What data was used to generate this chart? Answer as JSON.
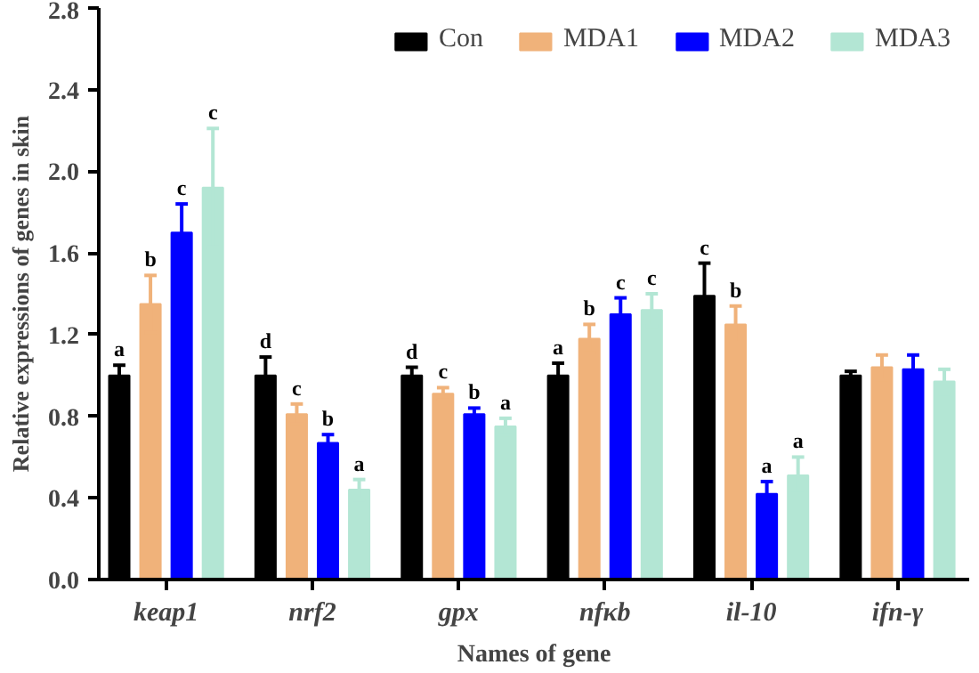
{
  "chart_data": {
    "type": "bar",
    "xlabel": "Names of gene",
    "ylabel": "Relative expressions of genes in skin",
    "categories": [
      "keap1",
      "nrf2",
      "gpx",
      "nfκb",
      "il-10",
      "ifn-γ"
    ],
    "series": [
      {
        "name": "Con",
        "color": "#000000",
        "values": [
          1.0,
          1.0,
          1.0,
          1.0,
          1.39,
          1.0
        ],
        "errors": [
          0.05,
          0.09,
          0.04,
          0.06,
          0.16,
          0.02
        ],
        "value_labels": [
          "a",
          "d",
          "d",
          "a",
          "c",
          null
        ]
      },
      {
        "name": "MDA1",
        "color": "#f0b27a",
        "values": [
          1.35,
          0.81,
          0.91,
          1.18,
          1.25,
          1.04
        ],
        "errors": [
          0.14,
          0.05,
          0.03,
          0.07,
          0.09,
          0.06
        ],
        "value_labels": [
          "b",
          "c",
          "c",
          "b",
          "b",
          null
        ]
      },
      {
        "name": "MDA2",
        "color": "#0000ff",
        "values": [
          1.7,
          0.67,
          0.81,
          1.3,
          0.42,
          1.03
        ],
        "errors": [
          0.14,
          0.04,
          0.03,
          0.08,
          0.06,
          0.07
        ],
        "value_labels": [
          "c",
          "b",
          "b",
          "c",
          "a",
          null
        ]
      },
      {
        "name": "MDA3",
        "color": "#b3e6d4",
        "values": [
          1.92,
          0.44,
          0.75,
          1.32,
          0.51,
          0.97
        ],
        "errors": [
          0.29,
          0.05,
          0.04,
          0.08,
          0.09,
          0.06
        ],
        "value_labels": [
          "c",
          "a",
          "a",
          "c",
          "a",
          null
        ]
      }
    ],
    "ylim": [
      0,
      2.8
    ],
    "yticks": [
      {
        "value": 0,
        "label": "0.0"
      },
      {
        "value": 0.4,
        "label": "0.4"
      },
      {
        "value": 0.8,
        "label": "0.8"
      },
      {
        "value": 1.2,
        "label": "1.2"
      },
      {
        "value": 1.6,
        "label": "1.6"
      },
      {
        "value": 2.0,
        "label": "2.0"
      },
      {
        "value": 2.4,
        "label": "2.4"
      },
      {
        "value": 2.8,
        "label": "2.8"
      }
    ],
    "grid": false,
    "legend": "top"
  }
}
